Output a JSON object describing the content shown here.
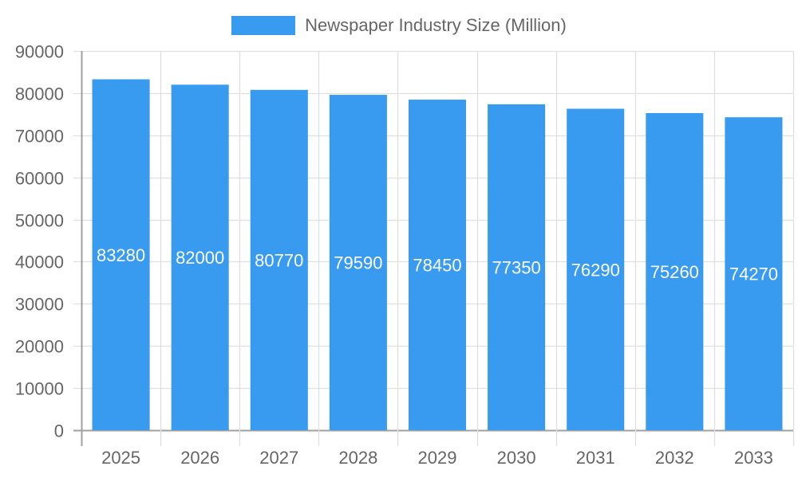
{
  "chart_data": {
    "type": "bar",
    "title": "",
    "xlabel": "",
    "ylabel": "",
    "categories": [
      "2025",
      "2026",
      "2027",
      "2028",
      "2029",
      "2030",
      "2031",
      "2032",
      "2033"
    ],
    "series": [
      {
        "name": "Newspaper Industry Size (Million)",
        "values": [
          83280,
          82000,
          80770,
          79590,
          78450,
          77350,
          76290,
          75260,
          74270
        ],
        "color": "#389BF0"
      }
    ],
    "ylim": [
      0,
      90000
    ],
    "yticks": [
      0,
      10000,
      20000,
      30000,
      40000,
      50000,
      60000,
      70000,
      80000,
      90000
    ],
    "grid": true,
    "legend_position": "top",
    "data_labels": true
  },
  "legend": {
    "label": "Newspaper Industry Size (Million)",
    "color": "#389BF0"
  },
  "colors": {
    "bar": "#389BF0",
    "text": "#666666",
    "grid": "#e0e0e0",
    "axis": "#a0a0a0",
    "data_label": "#ffffff"
  }
}
